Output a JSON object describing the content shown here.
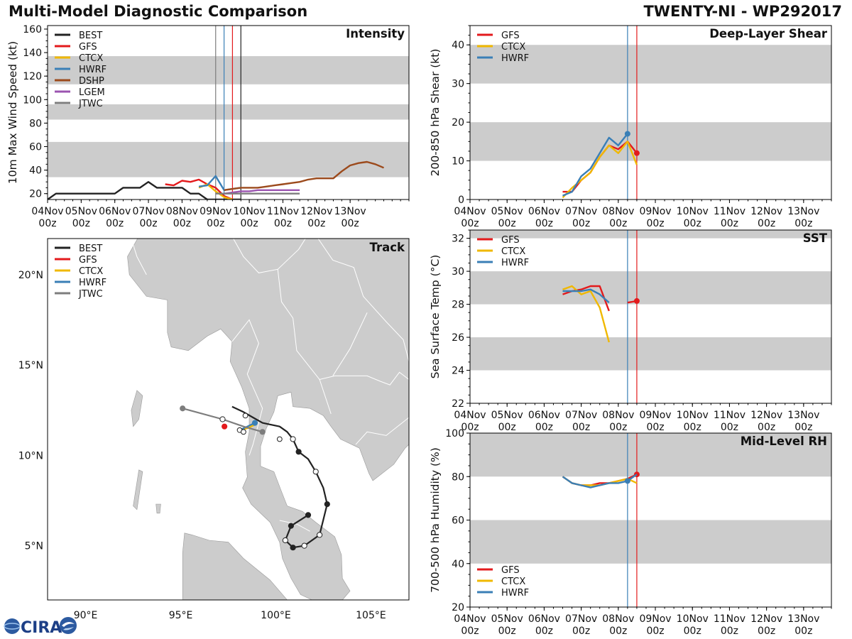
{
  "header": {
    "title": "Multi-Model Diagnostic Comparison",
    "storm": "TWENTY-NI - WP292017"
  },
  "colors": {
    "BEST": "#222222",
    "GFS": "#e31a1c",
    "CTCX": "#f0b800",
    "HWRF": "#3a7fb6",
    "DSHP": "#9c4a1c",
    "LGEM": "#9b54b0",
    "JTWC": "#7d7d7d",
    "band": "#cccccc",
    "land": "#cccccc",
    "sea": "#ffffff"
  },
  "logo": {
    "text": "CIRA",
    "icon": "satellite-swirl-icon"
  },
  "chart_data": [
    {
      "id": "intensity",
      "type": "line",
      "title": "Intensity",
      "ylabel": "10m Max Wind Speed (kt)",
      "xlabel": "",
      "x_unit": "days since 04Nov 00z",
      "xlim": [
        0,
        10.75
      ],
      "ylim": [
        15,
        163
      ],
      "xticks": [
        0,
        1,
        2,
        3,
        4,
        5,
        6,
        7,
        8,
        9
      ],
      "xticklabels": [
        [
          "04Nov",
          "00z"
        ],
        [
          "05Nov",
          "00z"
        ],
        [
          "06Nov",
          "00z"
        ],
        [
          "07Nov",
          "00z"
        ],
        [
          "08Nov",
          "00z"
        ],
        [
          "09Nov",
          "00z"
        ],
        [
          "10Nov",
          "00z"
        ],
        [
          "11Nov",
          "00z"
        ],
        [
          "12Nov",
          "00z"
        ],
        [
          "13Nov",
          "00z"
        ]
      ],
      "yticks": [
        20,
        40,
        60,
        80,
        100,
        120,
        140,
        160
      ],
      "bands": [
        [
          34,
          64
        ],
        [
          83,
          96
        ],
        [
          113,
          137
        ]
      ],
      "vlines": [
        {
          "x": 5.0,
          "series": "JTWC"
        },
        {
          "x": 5.25,
          "series": "HWRF"
        },
        {
          "x": 5.5,
          "series": "GFS"
        },
        {
          "x": 5.75,
          "series": "BEST"
        }
      ],
      "legend": [
        "BEST",
        "GFS",
        "CTCX",
        "HWRF",
        "DSHP",
        "LGEM",
        "JTWC"
      ],
      "legend_position": "top-left",
      "series": [
        {
          "name": "BEST",
          "x": [
            -0.25,
            0,
            0.25,
            0.5,
            0.75,
            1,
            1.25,
            1.5,
            1.75,
            2,
            2.25,
            2.5,
            2.75,
            3,
            3.25,
            3.5,
            3.75,
            4,
            4.25,
            4.5,
            4.75,
            5,
            5.25,
            5.5,
            5.75
          ],
          "y": [
            15,
            15,
            20,
            20,
            20,
            20,
            20,
            20,
            20,
            20,
            25,
            25,
            25,
            30,
            25,
            25,
            25,
            25,
            20,
            20,
            15,
            15,
            15,
            15,
            15
          ]
        },
        {
          "name": "GFS",
          "x": [
            3.5,
            3.75,
            4,
            4.25,
            4.5,
            4.75,
            5,
            5.25,
            5.5
          ],
          "y": [
            28,
            27,
            31,
            30,
            32,
            28,
            25,
            18,
            15
          ]
        },
        {
          "name": "CTCX",
          "x": [
            4.5,
            4.75,
            5,
            5.25,
            5.5
          ],
          "y": [
            25,
            28,
            22,
            17,
            15
          ]
        },
        {
          "name": "HWRF",
          "x": [
            4.5,
            4.75,
            5,
            5.25,
            5.5,
            5.75
          ],
          "y": [
            26,
            27,
            35,
            23,
            24,
            25
          ]
        },
        {
          "name": "DSHP",
          "x": [
            5.25,
            5.5,
            5.75,
            6,
            6.25,
            6.5,
            6.75,
            7,
            7.25,
            7.5,
            7.75,
            8,
            8.25,
            8.5,
            8.75,
            9,
            9.25,
            9.5,
            9.75,
            10
          ],
          "y": [
            23,
            24,
            25,
            25,
            25,
            26,
            27,
            28,
            29,
            30,
            32,
            33,
            33,
            33,
            39,
            44,
            46,
            47,
            45,
            42
          ]
        },
        {
          "name": "LGEM",
          "x": [
            5.25,
            5.5,
            5.75,
            6,
            6.25,
            6.5,
            6.75,
            7,
            7.25,
            7.5
          ],
          "y": [
            20,
            21,
            22,
            22,
            23,
            23,
            23,
            23,
            23,
            23
          ]
        },
        {
          "name": "JTWC",
          "x": [
            5.0,
            5.25,
            5.5,
            5.75,
            6,
            6.25,
            6.5,
            6.75,
            7,
            7.25,
            7.5
          ],
          "y": [
            20,
            20,
            20,
            20,
            20,
            20,
            20,
            20,
            20,
            20,
            20
          ]
        }
      ]
    },
    {
      "id": "shear",
      "type": "line",
      "title": "Deep-Layer Shear",
      "ylabel": "200-850 hPa Shear (kt)",
      "xlabel": "",
      "x_unit": "days since 04Nov 00z",
      "xlim": [
        0,
        9.75
      ],
      "ylim": [
        0,
        45
      ],
      "xticks": [
        0,
        1,
        2,
        3,
        4,
        5,
        6,
        7,
        8,
        9
      ],
      "xticklabels": [
        [
          "04Nov",
          "00z"
        ],
        [
          "05Nov",
          "00z"
        ],
        [
          "06Nov",
          "00z"
        ],
        [
          "07Nov",
          "00z"
        ],
        [
          "08Nov",
          "00z"
        ],
        [
          "09Nov",
          "00z"
        ],
        [
          "10Nov",
          "00z"
        ],
        [
          "11Nov",
          "00z"
        ],
        [
          "12Nov",
          "00z"
        ],
        [
          "13Nov",
          "00z"
        ]
      ],
      "yticks": [
        0,
        10,
        20,
        30,
        40
      ],
      "bands": [
        [
          10,
          20
        ],
        [
          30,
          40
        ]
      ],
      "vlines": [
        {
          "x": 4.25,
          "series": "HWRF"
        },
        {
          "x": 4.5,
          "series": "GFS"
        }
      ],
      "legend": [
        "GFS",
        "CTCX",
        "HWRF"
      ],
      "legend_position": "top-left",
      "series": [
        {
          "name": "GFS",
          "x": [
            2.5,
            2.75,
            3,
            3.25,
            3.5,
            3.75,
            4,
            4.25,
            4.5
          ],
          "y": [
            2,
            2,
            5,
            7,
            11,
            14,
            13,
            15,
            12
          ],
          "end_marker": true
        },
        {
          "name": "CTCX",
          "x": [
            2.5,
            2.75,
            3,
            3.25,
            3.5,
            3.75,
            4,
            4.25,
            4.5
          ],
          "y": [
            0.5,
            3,
            5,
            7,
            11,
            14,
            12,
            15,
            9
          ]
        },
        {
          "name": "HWRF",
          "x": [
            2.5,
            2.75,
            3,
            3.25,
            3.5,
            3.75,
            4,
            4.25
          ],
          "y": [
            1,
            2,
            6,
            8,
            12,
            16,
            14,
            17
          ],
          "end_marker": true
        }
      ]
    },
    {
      "id": "sst",
      "type": "line",
      "title": "SST",
      "ylabel": "Sea Surface Temp (°C)",
      "xlabel": "",
      "x_unit": "days since 04Nov 00z",
      "xlim": [
        0,
        9.75
      ],
      "ylim": [
        22,
        32.5
      ],
      "xticks": [
        0,
        1,
        2,
        3,
        4,
        5,
        6,
        7,
        8,
        9
      ],
      "xticklabels": [
        [
          "04Nov",
          "00z"
        ],
        [
          "05Nov",
          "00z"
        ],
        [
          "06Nov",
          "00z"
        ],
        [
          "07Nov",
          "00z"
        ],
        [
          "08Nov",
          "00z"
        ],
        [
          "09Nov",
          "00z"
        ],
        [
          "10Nov",
          "00z"
        ],
        [
          "11Nov",
          "00z"
        ],
        [
          "12Nov",
          "00z"
        ],
        [
          "13Nov",
          "00z"
        ]
      ],
      "yticks": [
        22,
        24,
        26,
        28,
        30,
        32
      ],
      "bands": [
        [
          24,
          26
        ],
        [
          28,
          30
        ],
        [
          32,
          32.5
        ]
      ],
      "vlines": [
        {
          "x": 4.25,
          "series": "HWRF"
        },
        {
          "x": 4.5,
          "series": "GFS"
        }
      ],
      "legend": [
        "GFS",
        "CTCX",
        "HWRF"
      ],
      "legend_position": "top-left",
      "series": [
        {
          "name": "GFS",
          "x": [
            2.5,
            2.75,
            3,
            3.25,
            3.5,
            3.75
          ],
          "y": [
            28.6,
            28.8,
            28.9,
            29.1,
            29.1,
            27.6
          ]
        },
        {
          "name": "GFS",
          "x": [
            4.25,
            4.5
          ],
          "y": [
            28.1,
            28.2
          ],
          "end_marker": true
        },
        {
          "name": "CTCX",
          "x": [
            2.5,
            2.75,
            3,
            3.25,
            3.5,
            3.75
          ],
          "y": [
            28.9,
            29.1,
            28.6,
            28.8,
            27.8,
            25.7
          ]
        },
        {
          "name": "HWRF",
          "x": [
            2.5,
            2.75,
            3,
            3.25,
            3.5,
            3.75
          ],
          "y": [
            28.8,
            28.8,
            28.8,
            28.9,
            28.6,
            28.1
          ]
        }
      ]
    },
    {
      "id": "rh",
      "type": "line",
      "title": "Mid-Level RH",
      "ylabel": "700-500 hPa Humidity (%)",
      "xlabel": "",
      "x_unit": "days since 04Nov 00z",
      "xlim": [
        0,
        9.75
      ],
      "ylim": [
        20,
        100
      ],
      "xticks": [
        0,
        1,
        2,
        3,
        4,
        5,
        6,
        7,
        8,
        9
      ],
      "xticklabels": [
        [
          "04Nov",
          "00z"
        ],
        [
          "05Nov",
          "00z"
        ],
        [
          "06Nov",
          "00z"
        ],
        [
          "07Nov",
          "00z"
        ],
        [
          "08Nov",
          "00z"
        ],
        [
          "09Nov",
          "00z"
        ],
        [
          "10Nov",
          "00z"
        ],
        [
          "11Nov",
          "00z"
        ],
        [
          "12Nov",
          "00z"
        ],
        [
          "13Nov",
          "00z"
        ]
      ],
      "yticks": [
        20,
        40,
        60,
        80,
        100
      ],
      "bands": [
        [
          40,
          60
        ],
        [
          80,
          100
        ]
      ],
      "vlines": [
        {
          "x": 4.25,
          "series": "HWRF"
        },
        {
          "x": 4.5,
          "series": "GFS"
        }
      ],
      "legend": [
        "GFS",
        "CTCX",
        "HWRF"
      ],
      "legend_position": "bottom-left",
      "series": [
        {
          "name": "GFS",
          "x": [
            2.5,
            2.75,
            3,
            3.25,
            3.5,
            3.75,
            4,
            4.25,
            4.5
          ],
          "y": [
            80,
            77,
            76,
            76,
            77,
            77,
            78,
            79,
            81
          ],
          "end_marker": true
        },
        {
          "name": "CTCX",
          "x": [
            2.5,
            2.75,
            3,
            3.25,
            3.5,
            3.75,
            4,
            4.25,
            4.5
          ],
          "y": [
            80,
            77,
            76,
            76,
            76,
            77,
            78,
            79,
            77
          ]
        },
        {
          "name": "HWRF",
          "x": [
            2.5,
            2.75,
            3,
            3.25,
            3.5,
            3.75,
            4,
            4.25,
            4.5
          ],
          "y": [
            80,
            77,
            76,
            75,
            76,
            77,
            77,
            78,
            81
          ],
          "end_marker_at": 4.25
        }
      ]
    },
    {
      "id": "track",
      "type": "map",
      "title": "Track",
      "xlim": [
        88,
        107
      ],
      "ylim": [
        2,
        22
      ],
      "xticks": [
        90,
        95,
        100,
        105
      ],
      "xticklabels": [
        "90°E",
        "95°E",
        "100°E",
        "105°E"
      ],
      "yticks": [
        5,
        10,
        15,
        20
      ],
      "yticklabels": [
        "5°N",
        "10°N",
        "15°N",
        "20°N"
      ],
      "legend": [
        "BEST",
        "GFS",
        "CTCX",
        "HWRF",
        "JTWC"
      ],
      "legend_position": "top-left",
      "tracks": [
        {
          "name": "BEST",
          "lon": [
            101.7,
            100.8,
            100.5,
            100.9,
            101.5,
            102.3,
            102.7,
            102.5,
            102.1,
            101.7,
            101.2,
            100.9,
            100.6,
            100.2,
            99.3,
            98.8,
            98.3,
            97.7
          ],
          "lat": [
            6.7,
            6.1,
            5.3,
            4.9,
            5.0,
            5.6,
            7.3,
            8.2,
            9.1,
            9.8,
            10.2,
            10.9,
            11.3,
            11.6,
            11.8,
            12.1,
            12.4,
            12.7
          ],
          "filled": [
            true,
            true,
            false,
            true,
            false,
            false,
            true,
            false,
            false,
            false,
            true,
            false,
            false,
            false,
            false,
            false,
            false,
            false
          ],
          "markers": [
            0,
            1,
            2,
            3,
            4,
            5,
            6,
            8,
            10,
            11
          ]
        },
        {
          "name": "GFS",
          "lon": [
            97.3
          ],
          "lat": [
            11.6
          ],
          "filled": [
            true
          ],
          "markers": [
            0
          ]
        },
        {
          "name": "CTCX",
          "lon": [
            98.1,
            98.5,
            98.9
          ],
          "lat": [
            11.4,
            11.5,
            11.7
          ],
          "filled": [
            false,
            false,
            false
          ],
          "markers": []
        },
        {
          "name": "HWRF",
          "lon": [
            98.1,
            98.5,
            98.9
          ],
          "lat": [
            11.4,
            11.6,
            11.8
          ],
          "filled": [
            false,
            false,
            true
          ],
          "markers": [
            2
          ]
        },
        {
          "name": "JTWC",
          "lon": [
            95.1,
            97.2,
            98.3,
            99.3
          ],
          "lat": [
            12.6,
            12.0,
            11.6,
            11.3
          ],
          "filled": [
            true,
            false,
            false,
            true
          ],
          "markers": [
            0,
            1,
            3
          ]
        }
      ],
      "open_points": {
        "lon": [
          98.4,
          98.1,
          98.3,
          100.2
        ],
        "lat": [
          12.2,
          11.4,
          11.3,
          10.9
        ]
      }
    }
  ]
}
